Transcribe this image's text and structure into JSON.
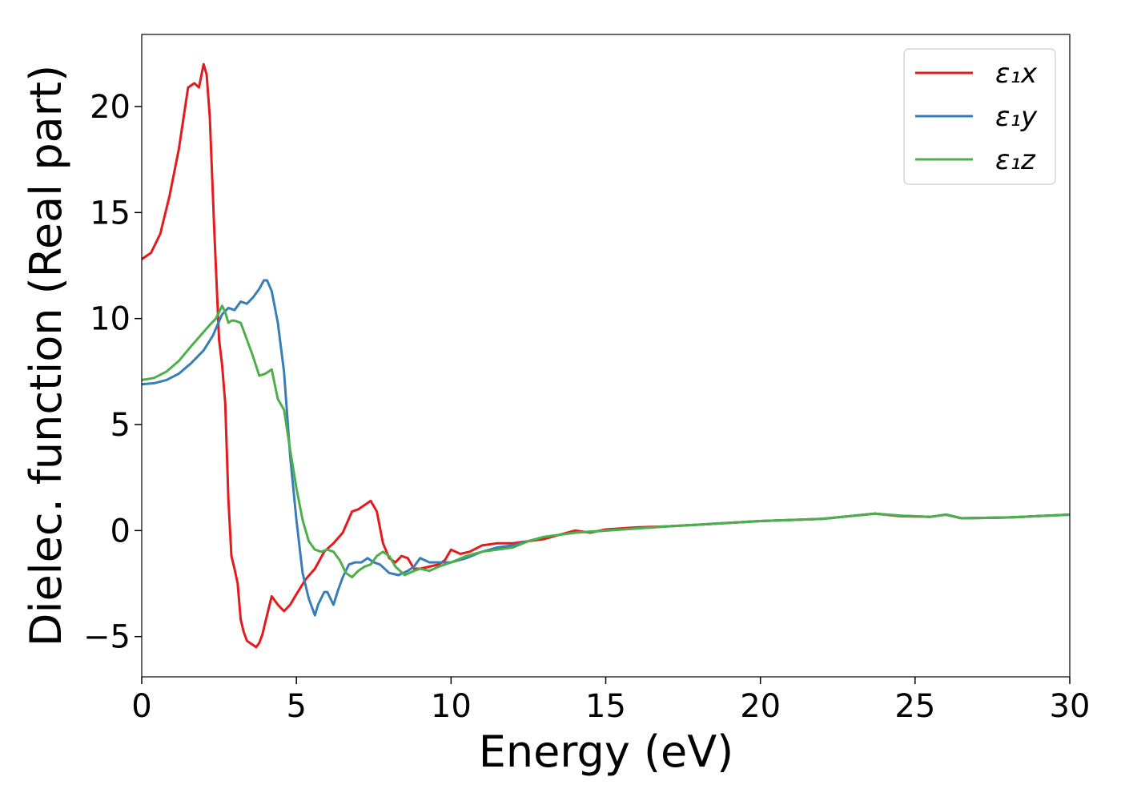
{
  "chart_data": {
    "type": "line",
    "xlabel": "Energy (eV)",
    "ylabel": "Dielec. function (Real part)",
    "xlim": [
      0,
      30
    ],
    "ylim": [
      -6.9,
      23.4
    ],
    "xticks": [
      0,
      5,
      10,
      15,
      20,
      25,
      30
    ],
    "yticks": [
      -5,
      0,
      5,
      10,
      15,
      20
    ],
    "xtick_labels": [
      "0",
      "5",
      "10",
      "15",
      "20",
      "25",
      "30"
    ],
    "ytick_labels": [
      "−5",
      "0",
      "5",
      "10",
      "15",
      "20"
    ],
    "grid": false,
    "legend_position": "top-right",
    "series": [
      {
        "name": "ε₁x",
        "color": "#e41a1c",
        "x": [
          0,
          0.3,
          0.6,
          0.9,
          1.2,
          1.5,
          1.7,
          1.85,
          2.0,
          2.1,
          2.2,
          2.35,
          2.5,
          2.6,
          2.7,
          2.8,
          2.9,
          3.0,
          3.1,
          3.2,
          3.3,
          3.4,
          3.5,
          3.6,
          3.7,
          3.8,
          3.9,
          4.0,
          4.2,
          4.4,
          4.6,
          4.8,
          5.0,
          5.3,
          5.6,
          5.9,
          6.2,
          6.5,
          6.8,
          7.0,
          7.2,
          7.4,
          7.6,
          7.8,
          8.0,
          8.2,
          8.4,
          8.6,
          8.8,
          9.0,
          9.3,
          9.6,
          9.8,
          10.0,
          10.3,
          10.6,
          11.0,
          11.5,
          12.0,
          12.5,
          13.0,
          13.5,
          14.0,
          14.5,
          15.0,
          16.0,
          17.0,
          18.0,
          20.0,
          22.0,
          23.7,
          24.5,
          25.5,
          26.0,
          26.5,
          28.0,
          30.0
        ],
        "y": [
          12.8,
          13.1,
          14.0,
          15.8,
          18.0,
          20.9,
          21.1,
          20.9,
          22.0,
          21.5,
          19.5,
          14.0,
          9.0,
          7.8,
          6.0,
          1.5,
          -1.2,
          -1.8,
          -2.5,
          -4.2,
          -4.8,
          -5.2,
          -5.3,
          -5.4,
          -5.5,
          -5.3,
          -4.9,
          -4.3,
          -3.1,
          -3.5,
          -3.8,
          -3.5,
          -3.0,
          -2.3,
          -1.8,
          -1.0,
          -0.6,
          -0.1,
          0.9,
          1.0,
          1.2,
          1.4,
          0.9,
          -0.6,
          -1.3,
          -1.5,
          -1.2,
          -1.3,
          -1.8,
          -1.8,
          -1.7,
          -1.6,
          -1.4,
          -0.9,
          -1.1,
          -1.0,
          -0.7,
          -0.6,
          -0.6,
          -0.5,
          -0.4,
          -0.2,
          0.0,
          -0.1,
          0.05,
          0.15,
          0.2,
          0.28,
          0.45,
          0.55,
          0.8,
          0.68,
          0.65,
          0.75,
          0.58,
          0.62,
          0.75
        ]
      },
      {
        "name": "ε₁y",
        "color": "#377eb8",
        "x": [
          0,
          0.4,
          0.8,
          1.2,
          1.6,
          2.0,
          2.3,
          2.6,
          2.8,
          3.0,
          3.2,
          3.4,
          3.6,
          3.8,
          3.95,
          4.05,
          4.2,
          4.4,
          4.6,
          4.8,
          5.0,
          5.2,
          5.4,
          5.6,
          5.7,
          5.9,
          6.0,
          6.1,
          6.2,
          6.35,
          6.5,
          6.7,
          6.9,
          7.1,
          7.3,
          7.5,
          7.7,
          8.0,
          8.3,
          8.6,
          8.8,
          9.0,
          9.3,
          9.6,
          10.0,
          10.5,
          11.0,
          11.5,
          12.0,
          12.5,
          13.0,
          13.5,
          14.0,
          14.5,
          15.0,
          16.0,
          17.0,
          18.0,
          20.0,
          22.0,
          23.7,
          24.5,
          25.5,
          26.0,
          26.5,
          28.0,
          30.0
        ],
        "y": [
          6.9,
          6.95,
          7.1,
          7.4,
          7.9,
          8.5,
          9.2,
          10.2,
          10.5,
          10.4,
          10.8,
          10.7,
          11.0,
          11.4,
          11.8,
          11.8,
          11.3,
          9.8,
          7.5,
          3.5,
          0.5,
          -2.0,
          -3.2,
          -4.0,
          -3.5,
          -2.9,
          -2.9,
          -3.2,
          -3.5,
          -2.8,
          -2.2,
          -1.6,
          -1.5,
          -1.5,
          -1.3,
          -1.5,
          -1.6,
          -2.0,
          -2.1,
          -1.9,
          -1.7,
          -1.3,
          -1.5,
          -1.5,
          -1.5,
          -1.3,
          -1.0,
          -0.8,
          -0.7,
          -0.5,
          -0.3,
          -0.2,
          -0.1,
          -0.05,
          0.0,
          0.1,
          0.2,
          0.28,
          0.45,
          0.55,
          0.8,
          0.7,
          0.65,
          0.75,
          0.58,
          0.62,
          0.75
        ]
      },
      {
        "name": "ε₁z",
        "color": "#4daf4a",
        "x": [
          0,
          0.4,
          0.8,
          1.2,
          1.6,
          1.9,
          2.2,
          2.4,
          2.6,
          2.7,
          2.8,
          2.9,
          3.0,
          3.2,
          3.4,
          3.6,
          3.8,
          4.0,
          4.2,
          4.4,
          4.6,
          4.8,
          5.0,
          5.2,
          5.4,
          5.6,
          5.8,
          6.0,
          6.2,
          6.4,
          6.6,
          6.8,
          7.0,
          7.2,
          7.4,
          7.6,
          7.8,
          8.0,
          8.2,
          8.5,
          8.8,
          9.0,
          9.3,
          9.6,
          10.0,
          10.5,
          11.0,
          11.5,
          12.0,
          12.5,
          13.0,
          13.5,
          14.0,
          14.5,
          15.0,
          16.0,
          17.0,
          18.0,
          20.0,
          22.0,
          23.7,
          24.5,
          25.5,
          26.0,
          26.5,
          28.0,
          30.0
        ],
        "y": [
          7.1,
          7.2,
          7.5,
          8.0,
          8.7,
          9.2,
          9.7,
          10.0,
          10.6,
          10.3,
          9.8,
          9.9,
          9.9,
          9.8,
          9.0,
          8.2,
          7.3,
          7.4,
          7.6,
          6.2,
          5.7,
          3.8,
          2.0,
          0.5,
          -0.5,
          -0.9,
          -1.0,
          -0.9,
          -1.0,
          -1.4,
          -2.0,
          -2.2,
          -1.9,
          -1.7,
          -1.6,
          -1.2,
          -1.0,
          -1.2,
          -1.7,
          -2.1,
          -1.9,
          -1.8,
          -1.9,
          -1.7,
          -1.5,
          -1.2,
          -1.0,
          -0.9,
          -0.8,
          -0.5,
          -0.3,
          -0.2,
          -0.1,
          -0.05,
          0.0,
          0.1,
          0.2,
          0.28,
          0.45,
          0.55,
          0.8,
          0.7,
          0.65,
          0.75,
          0.58,
          0.62,
          0.75
        ]
      }
    ]
  }
}
